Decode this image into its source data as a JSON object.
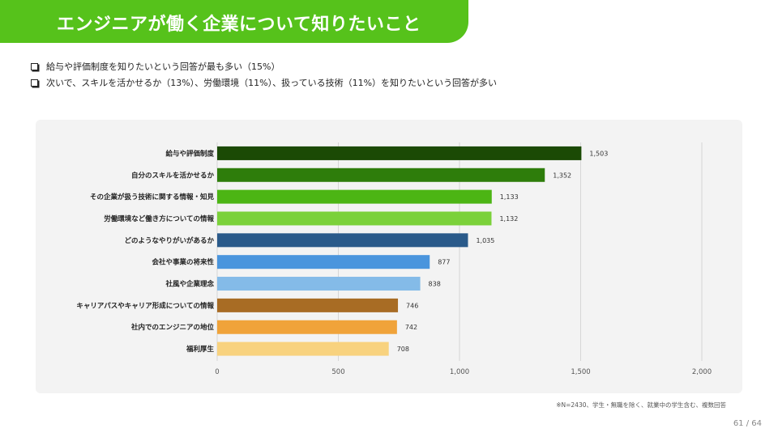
{
  "header": {
    "title": "エンジニアが働く企業について知りたいこと"
  },
  "bullets": [
    "給与や評価制度を知りたいという回答が最も多い（15%）",
    "次いで、スキルを活かせるか（13%）、労働環境（11%）、扱っている技術（11%）を知りたいという回答が多い"
  ],
  "chart_data": {
    "type": "bar",
    "orientation": "horizontal",
    "categories": [
      "給与や評価制度",
      "自分のスキルを活かせるか",
      "その企業が扱う技術に関する情報・知見",
      "労働環境など働き方についての情報",
      "どのようなやりがいがあるか",
      "会社や事業の将来性",
      "社風や企業理念",
      "キャリアパスやキャリア形成についての情報",
      "社内でのエンジニアの地位",
      "福利厚生"
    ],
    "values": [
      1503,
      1352,
      1133,
      1132,
      1035,
      877,
      838,
      746,
      742,
      708
    ],
    "value_labels": [
      "1,503",
      "1,352",
      "1,133",
      "1,132",
      "1,035",
      "877",
      "838",
      "746",
      "742",
      "708"
    ],
    "colors": [
      "#1b4a05",
      "#2e7d0b",
      "#4cb514",
      "#7bd13a",
      "#2a5a8a",
      "#4a95dd",
      "#84bbe8",
      "#a86c24",
      "#f0a33a",
      "#f8d27e"
    ],
    "xlim": [
      0,
      2000
    ],
    "ticks": [
      0,
      500,
      1000,
      1500,
      2000
    ],
    "tick_labels": [
      "0",
      "500",
      "1,000",
      "1,500",
      "2,000"
    ],
    "grid": true
  },
  "footnote": "※N=2430、学生・無職を除く、就業中の学生含む、複数回答",
  "page_number": "61 / 64"
}
